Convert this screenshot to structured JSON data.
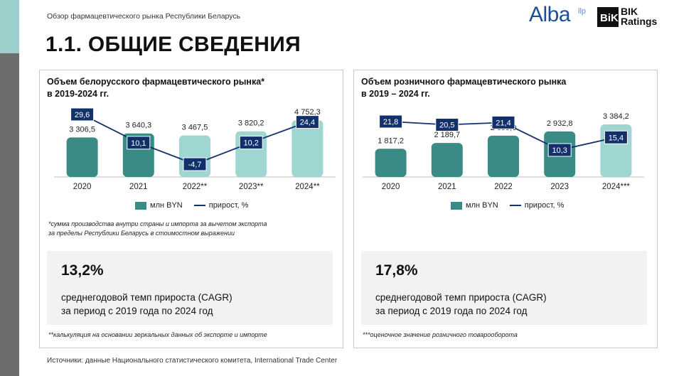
{
  "header": {
    "subtitle": "Обзор фармацевтического рынка Республики Беларусь",
    "logo_alba": "Alba",
    "logo_llp": "llp",
    "logo_bik": "BIK\nRatings",
    "page_title": "1.1. ОБЩИЕ СВЕДЕНИЯ"
  },
  "left": {
    "title_line1": "Объем белорусского фармацевтического рынка*",
    "title_line2": "в 2019-2024 гг.",
    "legend_bar": "млн BYN",
    "legend_line": "прирост, %",
    "footnote1_line1": "*сумма производства внутри страны и импорта за вычетом экспорта",
    "footnote1_line2": "за пределы Республики Беларусь в стоимостном выражении",
    "kpi_value": "13,2%",
    "kpi_line1": "среднегодовой темп прироста (CAGR)",
    "kpi_line2": "за период с 2019 года по 2024 год",
    "footnote2": "**калькуляция на основании зеркальных данных об экспорте и импорте"
  },
  "right": {
    "title_line1": "Объем розничного фармацевтического рынка",
    "title_line2": "в 2019 – 2024 гг.",
    "legend_bar": "млн BYN",
    "legend_line": "прирост, %",
    "kpi_value": "17,8%",
    "kpi_line1": "среднегодовой темп прироста (CAGR)",
    "kpi_line2": "за период с 2019 года по 2024 год",
    "footnote": "***оценочное значение розничного товарооборота"
  },
  "source": "Источники: данные Национального статистического комитета, International Trade Center",
  "colors": {
    "bar_dark": "#3a8b85",
    "bar_light": "#9fd6d1",
    "line": "#12306b",
    "label_box": "#12306b"
  },
  "chart_data": [
    {
      "type": "bar",
      "title": "Объем белорусского фармацевтического рынка* в 2019-2024 гг.",
      "categories": [
        "2020",
        "2021",
        "2022**",
        "2023**",
        "2024**"
      ],
      "series": [
        {
          "name": "млн BYN",
          "values": [
            3306.5,
            3640.3,
            3467.5,
            3820.2,
            4752.3
          ],
          "labels": [
            "3 306,5",
            "3 640,3",
            "3 467,5",
            "3 820,2",
            "4 752,3"
          ],
          "bar_colors": [
            "#3a8b85",
            "#3a8b85",
            "#9fd6d1",
            "#9fd6d1",
            "#9fd6d1"
          ]
        },
        {
          "name": "прирост, %",
          "type": "line",
          "values": [
            29.6,
            10.1,
            -4.7,
            10.2,
            24.4
          ],
          "labels": [
            "29,6",
            "10,1",
            "-4,7",
            "10,2",
            "24,4"
          ]
        }
      ],
      "legend": "bottom"
    },
    {
      "type": "bar",
      "title": "Объем розничного фармацевтического рынка в 2019 – 2024 гг.",
      "categories": [
        "2020",
        "2021",
        "2022",
        "2023",
        "2024***"
      ],
      "series": [
        {
          "name": "млн BYN",
          "values": [
            1817.2,
            2189.7,
            2659.0,
            2932.8,
            3384.2
          ],
          "labels": [
            "1 817,2",
            "2 189,7",
            "2 659,0",
            "2 932,8",
            "3 384,2"
          ],
          "bar_colors": [
            "#3a8b85",
            "#3a8b85",
            "#3a8b85",
            "#3a8b85",
            "#9fd6d1"
          ]
        },
        {
          "name": "прирост, %",
          "type": "line",
          "values": [
            21.8,
            20.5,
            21.4,
            10.3,
            15.4
          ],
          "labels": [
            "21,8",
            "20,5",
            "21,4",
            "10,3",
            "15,4"
          ]
        }
      ],
      "legend": "bottom"
    }
  ]
}
